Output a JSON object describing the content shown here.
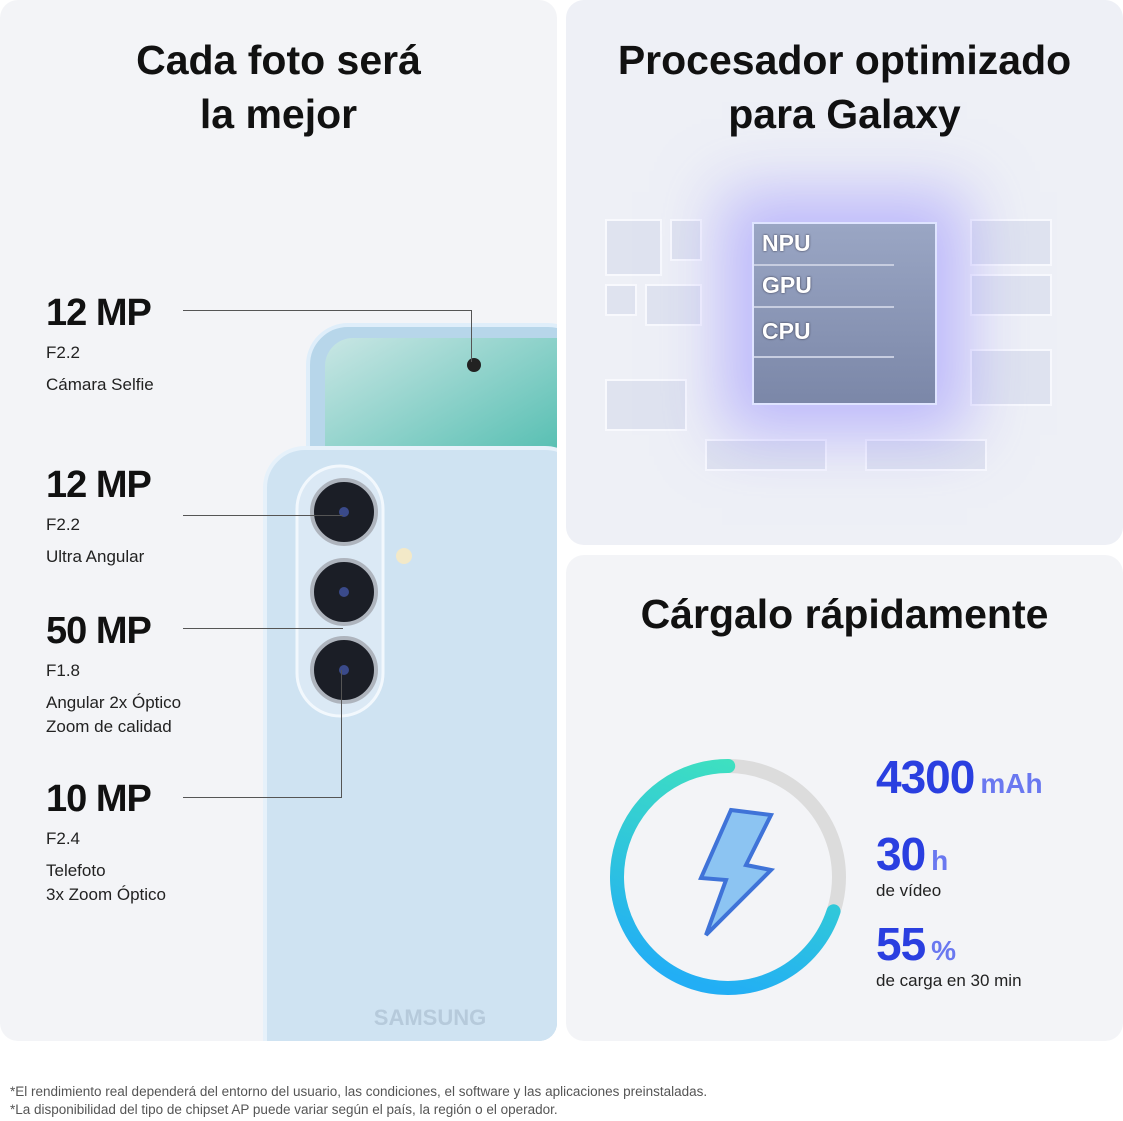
{
  "camera_panel": {
    "title_line1": "Cada foto será",
    "title_line2": "la mejor",
    "specs": [
      {
        "mp": "12 MP",
        "aperture": "F2.2",
        "desc1": "Cámara Selfie",
        "desc2": ""
      },
      {
        "mp": "12 MP",
        "aperture": "F2.2",
        "desc1": "Ultra Angular",
        "desc2": ""
      },
      {
        "mp": "50 MP",
        "aperture": "F1.8",
        "desc1": "Angular 2x Óptico",
        "desc2": "Zoom de calidad"
      },
      {
        "mp": "10 MP",
        "aperture": "F2.4",
        "desc1": "Telefoto",
        "desc2": "3x Zoom Óptico"
      }
    ],
    "brand": "SAMSUNG"
  },
  "processor_panel": {
    "title_line1": "Procesador optimizado",
    "title_line2": "para Galaxy",
    "chip_rows": [
      "NPU",
      "GPU",
      "CPU"
    ]
  },
  "charge_panel": {
    "title": "Cárgalo rápidamente",
    "ring_fill": 0.7,
    "colors": {
      "ring_start": "#3ee0c0",
      "ring_end": "#22aef5",
      "ring_track": "#dcdcdc",
      "number": "#2a3fe0"
    },
    "icon": "lightning-bolt-icon",
    "stats": [
      {
        "value": "4300",
        "unit": "mAh",
        "desc": ""
      },
      {
        "value": "30",
        "unit": "h",
        "desc": "de vídeo"
      },
      {
        "value": "55",
        "unit": "%",
        "desc": "de carga en 30 min"
      }
    ]
  },
  "footnotes": [
    "*El rendimiento real dependerá del entorno del usuario, las condiciones, el software y las aplicaciones preinstaladas.",
    "*La disponibilidad del tipo de chipset AP puede variar según el país, la región o el operador."
  ]
}
